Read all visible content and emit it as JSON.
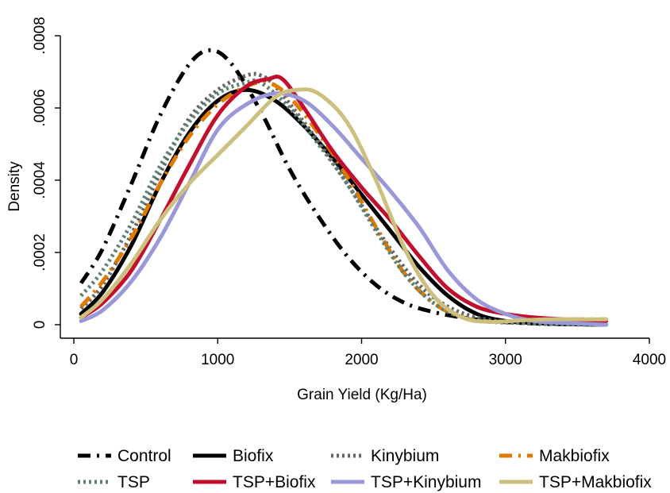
{
  "chart_data": {
    "type": "line",
    "xlabel": "Grain Yield (Kg/Ha)",
    "ylabel": "Density",
    "xlim": [
      0,
      4000
    ],
    "ylim": [
      0,
      0.0008
    ],
    "xticks": [
      0,
      1000,
      2000,
      3000,
      4000
    ],
    "xtick_labels": [
      "0",
      "1000",
      "2000",
      "3000",
      "4000"
    ],
    "yticks": [
      0,
      0.0002,
      0.0004,
      0.0006,
      0.0008
    ],
    "ytick_labels": [
      "0",
      ".0002",
      ".0004",
      ".0006",
      ".0008"
    ],
    "grid": false,
    "legend_position": "bottom",
    "series": [
      {
        "name": "Control",
        "color": "#000000",
        "style": "dash-dot",
        "x": [
          50,
          200,
          400,
          600,
          800,
          950,
          1100,
          1300,
          1500,
          1700,
          1900,
          2100,
          2300,
          2500,
          2700,
          2900,
          3100,
          3300,
          3500,
          3700
        ],
        "y": [
          0.000115,
          0.00021,
          0.00039,
          0.00058,
          0.00072,
          0.00076,
          0.00072,
          0.00059,
          0.00043,
          0.0003,
          0.00019,
          0.00011,
          6e-05,
          3.5e-05,
          2e-05,
          1e-05,
          5e-06,
          2e-06,
          1e-06,
          0.0
        ]
      },
      {
        "name": "Biofix",
        "color": "#000000",
        "style": "solid",
        "x": [
          50,
          200,
          400,
          600,
          800,
          1000,
          1200,
          1400,
          1600,
          1800,
          2000,
          2200,
          2400,
          2600,
          2800,
          3000,
          3200,
          3400,
          3700
        ],
        "y": [
          3e-05,
          9e-05,
          0.00022,
          0.00039,
          0.00053,
          0.00062,
          0.00065,
          0.00062,
          0.00055,
          0.00046,
          0.00036,
          0.00026,
          0.00016,
          8e-05,
          3e-05,
          1e-05,
          5e-06,
          2e-06,
          0.0
        ]
      },
      {
        "name": "Kinybium",
        "color": "#666666",
        "style": "dotted",
        "x": [
          50,
          200,
          400,
          600,
          800,
          1000,
          1200,
          1300,
          1400,
          1600,
          1800,
          2000,
          2200,
          2400,
          2600,
          2800,
          3000,
          3200,
          3400,
          3700
        ],
        "y": [
          4.5e-05,
          0.00011,
          0.00025,
          0.00042,
          0.00057,
          0.00065,
          0.00069,
          0.00069,
          0.00066,
          0.00056,
          0.00045,
          0.00033,
          0.00021,
          0.00011,
          5e-05,
          2e-05,
          8e-06,
          3e-06,
          1e-06,
          0.0
        ]
      },
      {
        "name": "Makbiofix",
        "color": "#e07b00",
        "style": "dash-dot",
        "x": [
          50,
          200,
          400,
          600,
          800,
          1000,
          1200,
          1350,
          1500,
          1700,
          1900,
          2100,
          2300,
          2500,
          2700,
          2900,
          3100,
          3300,
          3500,
          3700
        ],
        "y": [
          5e-05,
          0.00012,
          0.00024,
          0.00039,
          0.00052,
          0.00061,
          0.00066,
          0.00067,
          0.00063,
          0.00053,
          0.00041,
          0.00027,
          0.00014,
          6e-05,
          2e-05,
          8e-06,
          1.2e-05,
          1.5e-05,
          1.5e-05,
          1.5e-05
        ]
      },
      {
        "name": "TSP",
        "color": "#5f8074",
        "style": "dotted",
        "x": [
          50,
          200,
          400,
          600,
          800,
          1000,
          1200,
          1300,
          1500,
          1700,
          1900,
          2100,
          2300,
          2500,
          2700,
          2900,
          3100,
          3300,
          3500,
          3700
        ],
        "y": [
          8e-05,
          0.00015,
          0.00028,
          0.00044,
          0.00056,
          0.00064,
          0.00067,
          0.00067,
          0.0006,
          0.0005,
          0.00039,
          0.00026,
          0.00014,
          6e-05,
          2e-05,
          8e-06,
          5e-06,
          3e-06,
          2e-06,
          1e-06
        ]
      },
      {
        "name": "TSP+Biofix",
        "color": "#c0102e",
        "style": "solid",
        "x": [
          50,
          200,
          400,
          600,
          800,
          1000,
          1200,
          1350,
          1450,
          1600,
          1800,
          2000,
          2200,
          2400,
          2600,
          2800,
          3000,
          3200,
          3400,
          3700
        ],
        "y": [
          2e-05,
          6e-05,
          0.00015,
          0.00029,
          0.00044,
          0.00058,
          0.00066,
          0.00068,
          0.00068,
          0.0006,
          0.00048,
          0.00038,
          0.00029,
          0.00019,
          0.0001,
          5e-05,
          3e-05,
          2e-05,
          1.5e-05,
          1e-05
        ]
      },
      {
        "name": "TSP+Kinybium",
        "color": "#9b98d9",
        "style": "solid",
        "x": [
          50,
          200,
          400,
          600,
          800,
          1000,
          1200,
          1400,
          1600,
          1800,
          2000,
          2200,
          2400,
          2600,
          2800,
          3000,
          3200,
          3400,
          3700
        ],
        "y": [
          1e-05,
          4e-05,
          0.00012,
          0.00024,
          0.00039,
          0.00054,
          0.00061,
          0.00064,
          0.00062,
          0.00055,
          0.00046,
          0.00037,
          0.00027,
          0.00015,
          7e-05,
          3e-05,
          1e-05,
          5e-06,
          0.0
        ]
      },
      {
        "name": "TSP+Makbiofix",
        "color": "#cdc07f",
        "style": "solid",
        "x": [
          50,
          200,
          400,
          600,
          800,
          1000,
          1200,
          1400,
          1550,
          1700,
          1900,
          2100,
          2300,
          2500,
          2700,
          2900,
          3100,
          3300,
          3500,
          3700
        ],
        "y": [
          2e-05,
          7e-05,
          0.00017,
          0.00029,
          0.00039,
          0.00047,
          0.00055,
          0.00063,
          0.00065,
          0.00064,
          0.00056,
          0.0004,
          0.00021,
          8e-05,
          2e-05,
          8e-06,
          1.2e-05,
          1.5e-05,
          1.5e-05,
          1.5e-05
        ]
      }
    ]
  }
}
